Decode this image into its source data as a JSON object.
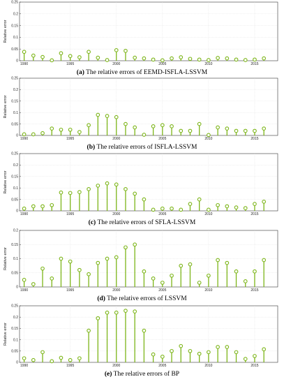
{
  "colors": {
    "stem": "#7cb518",
    "marker": "#7cb518",
    "axis": "#333333",
    "grid": "#d9d9d9"
  },
  "chart_data": [
    {
      "type": "stem",
      "caption_label": "(a)",
      "caption_text": "The relative errors of EEMD-ISFLA-LSSVM",
      "ylabel": "Relative error",
      "xlim": [
        1989.5,
        2017.5
      ],
      "ylim": [
        0,
        0.25
      ],
      "xticks": [
        "1990",
        "1995",
        "2000",
        "2005",
        "2010",
        "2015"
      ],
      "yticks": [
        "0",
        "0.05",
        "0.1",
        "0.15",
        "0.2",
        "0.25"
      ],
      "grid": true,
      "x": [
        1990,
        1991,
        1992,
        1993,
        1994,
        1995,
        1996,
        1997,
        1998,
        1999,
        2000,
        2001,
        2002,
        2003,
        2004,
        2005,
        2006,
        2007,
        2008,
        2009,
        2010,
        2011,
        2012,
        2013,
        2014,
        2015,
        2016
      ],
      "values": [
        0.038,
        0.022,
        0.016,
        0.002,
        0.032,
        0.02,
        0.015,
        0.038,
        0.013,
        0.003,
        0.045,
        0.042,
        0.013,
        0.01,
        0.005,
        0.002,
        0.01,
        0.015,
        0.008,
        0.005,
        0.003,
        0.012,
        0.01,
        0.005,
        0.003,
        0.005,
        0.01
      ]
    },
    {
      "type": "stem",
      "caption_label": "(b)",
      "caption_text": "The relative errors of ISFLA-LSSVM",
      "ylabel": "Relative error",
      "xlim": [
        1989.5,
        2017.5
      ],
      "ylim": [
        0,
        0.25
      ],
      "xticks": [
        "1990",
        "1995",
        "2000",
        "2005",
        "2010",
        "2015"
      ],
      "yticks": [
        "0",
        "0.05",
        "0.1",
        "0.15",
        "0.2",
        "0.25"
      ],
      "grid": true,
      "x": [
        1990,
        1991,
        1992,
        1993,
        1994,
        1995,
        1996,
        1997,
        1998,
        1999,
        2000,
        2001,
        2002,
        2003,
        2004,
        2005,
        2006,
        2007,
        2008,
        2009,
        2010,
        2011,
        2012,
        2013,
        2014,
        2015,
        2016
      ],
      "values": [
        0.005,
        0.005,
        0.01,
        0.03,
        0.025,
        0.025,
        0.015,
        0.045,
        0.09,
        0.085,
        0.08,
        0.05,
        0.035,
        0.003,
        0.04,
        0.045,
        0.04,
        0.02,
        0.02,
        0.05,
        0.002,
        0.035,
        0.03,
        0.02,
        0.02,
        0.02,
        0.03
      ]
    },
    {
      "type": "stem",
      "caption_label": "(c)",
      "caption_text": "The relative errors of SFLA-LSSVM",
      "ylabel": "Relative error",
      "xlim": [
        1989.5,
        2017.5
      ],
      "ylim": [
        0,
        0.25
      ],
      "xticks": [
        "1990",
        "1995",
        "2000",
        "2005",
        "2010",
        "2015"
      ],
      "yticks": [
        "0",
        "0.05",
        "0.1",
        "0.15",
        "0.2",
        "0.25"
      ],
      "grid": true,
      "x": [
        1990,
        1991,
        1992,
        1993,
        1994,
        1995,
        1996,
        1997,
        1998,
        1999,
        2000,
        2001,
        2002,
        2003,
        2004,
        2005,
        2006,
        2007,
        2008,
        2009,
        2010,
        2011,
        2012,
        2013,
        2014,
        2015,
        2016
      ],
      "values": [
        0.01,
        0.02,
        0.02,
        0.025,
        0.08,
        0.078,
        0.082,
        0.095,
        0.11,
        0.12,
        0.115,
        0.095,
        0.075,
        0.05,
        0.005,
        0.01,
        0.01,
        0.005,
        0.03,
        0.05,
        0.005,
        0.025,
        0.02,
        0.015,
        0.012,
        0.03,
        0.04
      ]
    },
    {
      "type": "stem",
      "caption_label": "(d)",
      "caption_text": "The relative errors of LSSVM",
      "ylabel": "Relative error",
      "xlim": [
        1989.5,
        2017.5
      ],
      "ylim": [
        0,
        0.2
      ],
      "xticks": [
        "1990",
        "1995",
        "2000",
        "2005",
        "2010",
        "2015"
      ],
      "yticks": [
        "0",
        "0.05",
        "0.1",
        "0.15",
        "0.2"
      ],
      "grid": true,
      "x": [
        1990,
        1991,
        1992,
        1993,
        1994,
        1995,
        1996,
        1997,
        1998,
        1999,
        2000,
        2001,
        2002,
        2003,
        2004,
        2005,
        2006,
        2007,
        2008,
        2009,
        2010,
        2011,
        2012,
        2013,
        2014,
        2015,
        2016
      ],
      "values": [
        0.025,
        0.01,
        0.065,
        0.03,
        0.1,
        0.09,
        0.06,
        0.045,
        0.085,
        0.1,
        0.105,
        0.14,
        0.15,
        0.055,
        0.03,
        0.015,
        0.04,
        0.075,
        0.08,
        0.015,
        0.04,
        0.095,
        0.085,
        0.055,
        0.02,
        0.055,
        0.095
      ]
    },
    {
      "type": "stem",
      "caption_label": "(e)",
      "caption_text": "The relative errors of BP",
      "ylabel": "Relative error",
      "xlim": [
        1989.5,
        2017.5
      ],
      "ylim": [
        0,
        0.25
      ],
      "xticks": [
        "1990",
        "1995",
        "2000",
        "2005",
        "2010",
        "2015"
      ],
      "yticks": [
        "0",
        "0.05",
        "0.1",
        "0.15",
        "0.2",
        "0.25"
      ],
      "grid": true,
      "x": [
        1990,
        1991,
        1992,
        1993,
        1994,
        1995,
        1996,
        1997,
        1998,
        1999,
        2000,
        2001,
        2002,
        2003,
        2004,
        2005,
        2006,
        2007,
        2008,
        2009,
        2010,
        2011,
        2012,
        2013,
        2014,
        2015,
        2016
      ],
      "values": [
        0.018,
        0.01,
        0.045,
        0.005,
        0.02,
        0.01,
        0.018,
        0.14,
        0.195,
        0.22,
        0.22,
        0.228,
        0.225,
        0.14,
        0.035,
        0.025,
        0.05,
        0.072,
        0.05,
        0.038,
        0.045,
        0.068,
        0.068,
        0.045,
        0.015,
        0.028,
        0.058
      ]
    }
  ]
}
